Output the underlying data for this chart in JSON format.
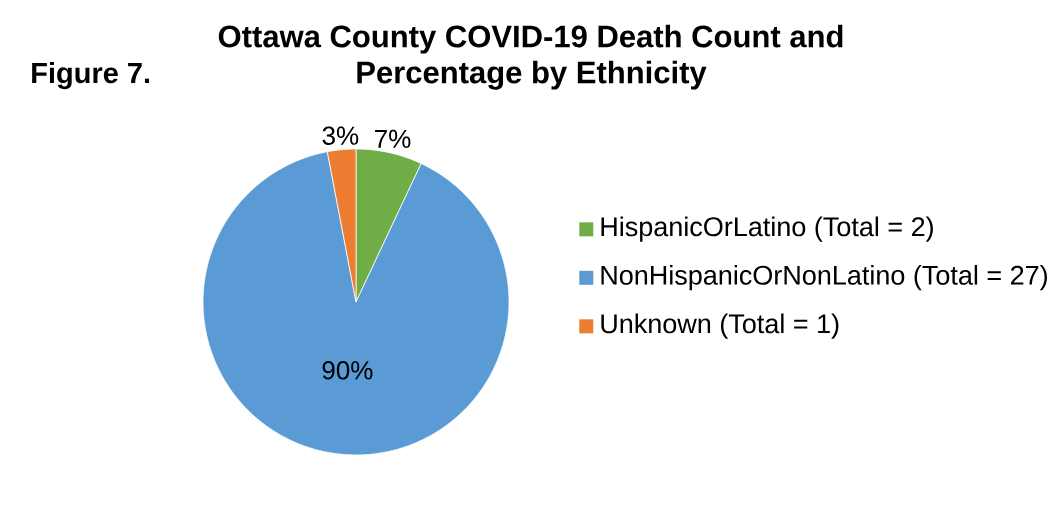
{
  "chart_data": {
    "type": "pie",
    "title": "Ottawa County COVID-19 Death Count and Percentage by Ethnicity",
    "annotations": [
      "Figure 7."
    ],
    "categories": [
      "HispanicOrLatino (Total = 2)",
      "NonHispanicOrNonLatino (Total = 27)",
      "Unknown (Total = 1)"
    ],
    "values": [
      7,
      90,
      3
    ],
    "colors": [
      "#70ad47",
      "#5b9bd5",
      "#ed7d31"
    ],
    "value_labels": [
      "7%",
      "90%",
      "3%"
    ],
    "legend": "right"
  }
}
